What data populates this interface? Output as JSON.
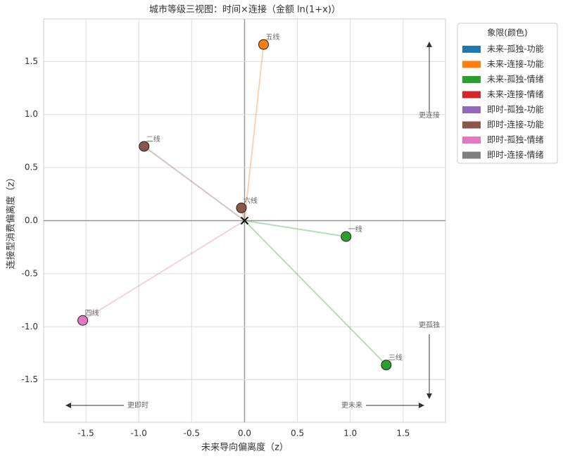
{
  "chart_data": {
    "type": "scatter",
    "title": "城市等级三视图：时间×连接（金额 ln(1+x)）",
    "x_label": "未来导向偏离度（z）",
    "y_label": "连接型消费偏离度（z）",
    "xlim": [
      -1.9,
      1.9
    ],
    "ylim": [
      -1.9,
      1.9
    ],
    "xticks": [
      -1.5,
      {
        "value": -1,
        "label": "-1.0"
      },
      -0.5,
      {
        "value": 0,
        "label": "0.0"
      },
      0.5,
      {
        "value": 1,
        "label": "1.0"
      },
      1.5
    ],
    "yticks": [
      -1.5,
      {
        "value": -1,
        "label": "-1.0"
      },
      -0.5,
      {
        "value": 0,
        "label": "0.0"
      },
      0.5,
      {
        "value": 1,
        "label": "1.0"
      },
      1.5
    ],
    "grid": true,
    "legend_title": "象限(颜色)",
    "legend_position": "outside-right",
    "series": [
      {
        "name": "未来-孤独-功能",
        "color": "#1f77b4"
      },
      {
        "name": "未来-连接-功能",
        "color": "#ff7f0e"
      },
      {
        "name": "未来-孤独-情绪",
        "color": "#2ca02c"
      },
      {
        "name": "未来-连接-情绪",
        "color": "#d62728"
      },
      {
        "name": "即时-孤独-功能",
        "color": "#9467bd"
      },
      {
        "name": "即时-连接-功能",
        "color": "#8c564b"
      },
      {
        "name": "即时-孤独-情绪",
        "color": "#e377c2"
      },
      {
        "name": "即时-连接-情绪",
        "color": "#7f7f7f"
      }
    ],
    "points": [
      {
        "label": "五线",
        "x": 0.18,
        "y": 1.66,
        "color": "#ff7f0e"
      },
      {
        "label": "二线",
        "x": -0.95,
        "y": 0.7,
        "color": "#8c564b"
      },
      {
        "label": "六线",
        "x": -0.03,
        "y": 0.12,
        "color": "#8c564b"
      },
      {
        "label": "一线",
        "x": 0.96,
        "y": -0.15,
        "color": "#2ca02c"
      },
      {
        "label": "三线",
        "x": 1.34,
        "y": -1.36,
        "color": "#2ca02c"
      },
      {
        "label": "四线",
        "x": -1.53,
        "y": -0.94,
        "color": "#e377c2"
      }
    ],
    "annotations": {
      "up": "更连接",
      "down": "更孤独",
      "left": "更即时",
      "right": "更未来"
    }
  }
}
